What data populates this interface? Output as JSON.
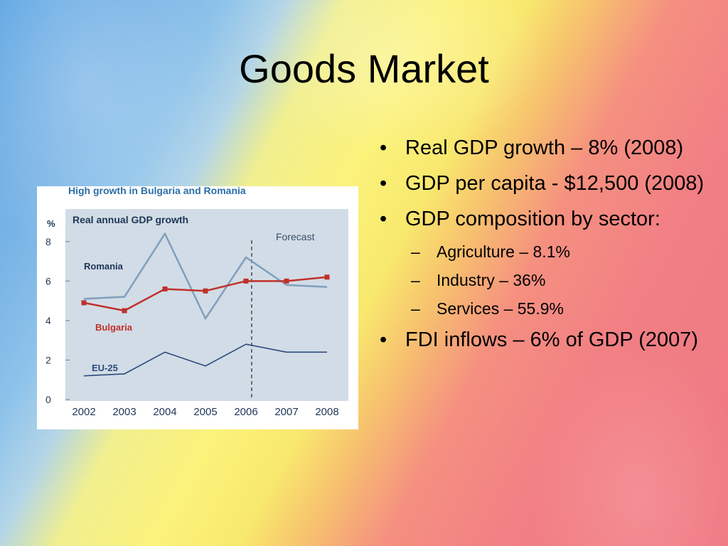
{
  "slide": {
    "title": "Goods Market",
    "bullets": [
      {
        "mark": "•",
        "text": "Real GDP growth – 8% (2008)"
      },
      {
        "mark": "•",
        "text": "GDP per capita - $12,500 (2008)"
      },
      {
        "mark": "•",
        "text": "GDP composition by sector:"
      }
    ],
    "sub_bullets": [
      {
        "mark": "–",
        "text": "Agriculture – 8.1%"
      },
      {
        "mark": "–",
        "text": "Industry – 36%"
      },
      {
        "mark": "–",
        "text": "Services – 55.9%"
      }
    ],
    "last_bullet": {
      "mark": "•",
      "text": "FDI inflows – 6% of GDP (2007)"
    }
  },
  "chart_data": {
    "type": "line",
    "title": "High growth in Bulgaria and Romania",
    "subtitle": "Real annual GDP growth",
    "ylabel": "%",
    "forecast_label": "Forecast",
    "forecast_from": "2006",
    "categories": [
      "2002",
      "2003",
      "2004",
      "2005",
      "2006",
      "2007",
      "2008"
    ],
    "yticks": [
      "0",
      "2",
      "4",
      "6",
      "8"
    ],
    "ylim": [
      0,
      9
    ],
    "grid": false,
    "series": [
      {
        "name": "Romania",
        "color": "#7f9fbd",
        "values": [
          5.1,
          5.2,
          8.4,
          4.1,
          7.2,
          5.8,
          5.7
        ]
      },
      {
        "name": "Bulgaria",
        "color": "#c0302a",
        "values": [
          4.9,
          4.5,
          5.6,
          5.5,
          6.0,
          6.0,
          6.2
        ]
      },
      {
        "name": "EU-25",
        "color": "#2c4a7c",
        "values": [
          1.2,
          1.3,
          2.4,
          1.7,
          2.8,
          2.4,
          2.4
        ]
      }
    ],
    "colors": {
      "panel": "#d2dce6",
      "title": "#2b6fa8",
      "text": "#1e3556"
    }
  }
}
